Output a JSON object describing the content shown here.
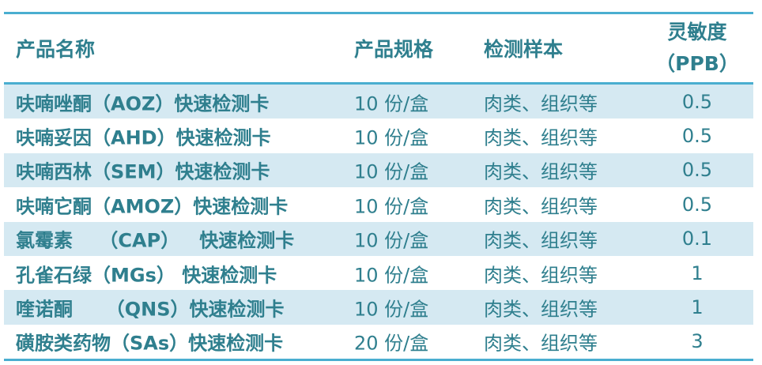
{
  "colors": {
    "text": "#2f7f8e",
    "rule": "#4aaed0",
    "stripe": "#d5e9f2"
  },
  "headers": [
    "产品名称",
    "产品规格",
    "检测样本",
    "灵敏度",
    "（PPB）"
  ],
  "rows": [
    [
      "呋喃唑酮（AOZ）快速检测卡",
      "10 份/盒",
      "肉类、组织等",
      "0.5"
    ],
    [
      "呋喃妥因（AHD）快速检测卡",
      "10 份/盒",
      "肉类、组织等",
      "0.5"
    ],
    [
      "呋喃西林（SEM）快速检测卡",
      "10 份/盒",
      "肉类、组织等",
      "0.5"
    ],
    [
      "呋喃它酮（AMOZ）快速检测卡",
      "10 份/盒",
      "肉类、组织等",
      "0.5"
    ],
    [
      "氯霉素    （CAP）   快速检测卡",
      "10 份/盒",
      "肉类、组织等",
      "0.1"
    ],
    [
      "孔雀石绿（MGs） 快速检测卡",
      "10 份/盒",
      "肉类、组织等",
      "1"
    ],
    [
      "喹诺酮     （QNS）快速检测卡",
      "10 份/盒",
      "肉类、组织等",
      "1"
    ],
    [
      "磺胺类药物（SAs）快速检测卡",
      "20 份/盒",
      "肉类、组织等",
      "3"
    ]
  ]
}
